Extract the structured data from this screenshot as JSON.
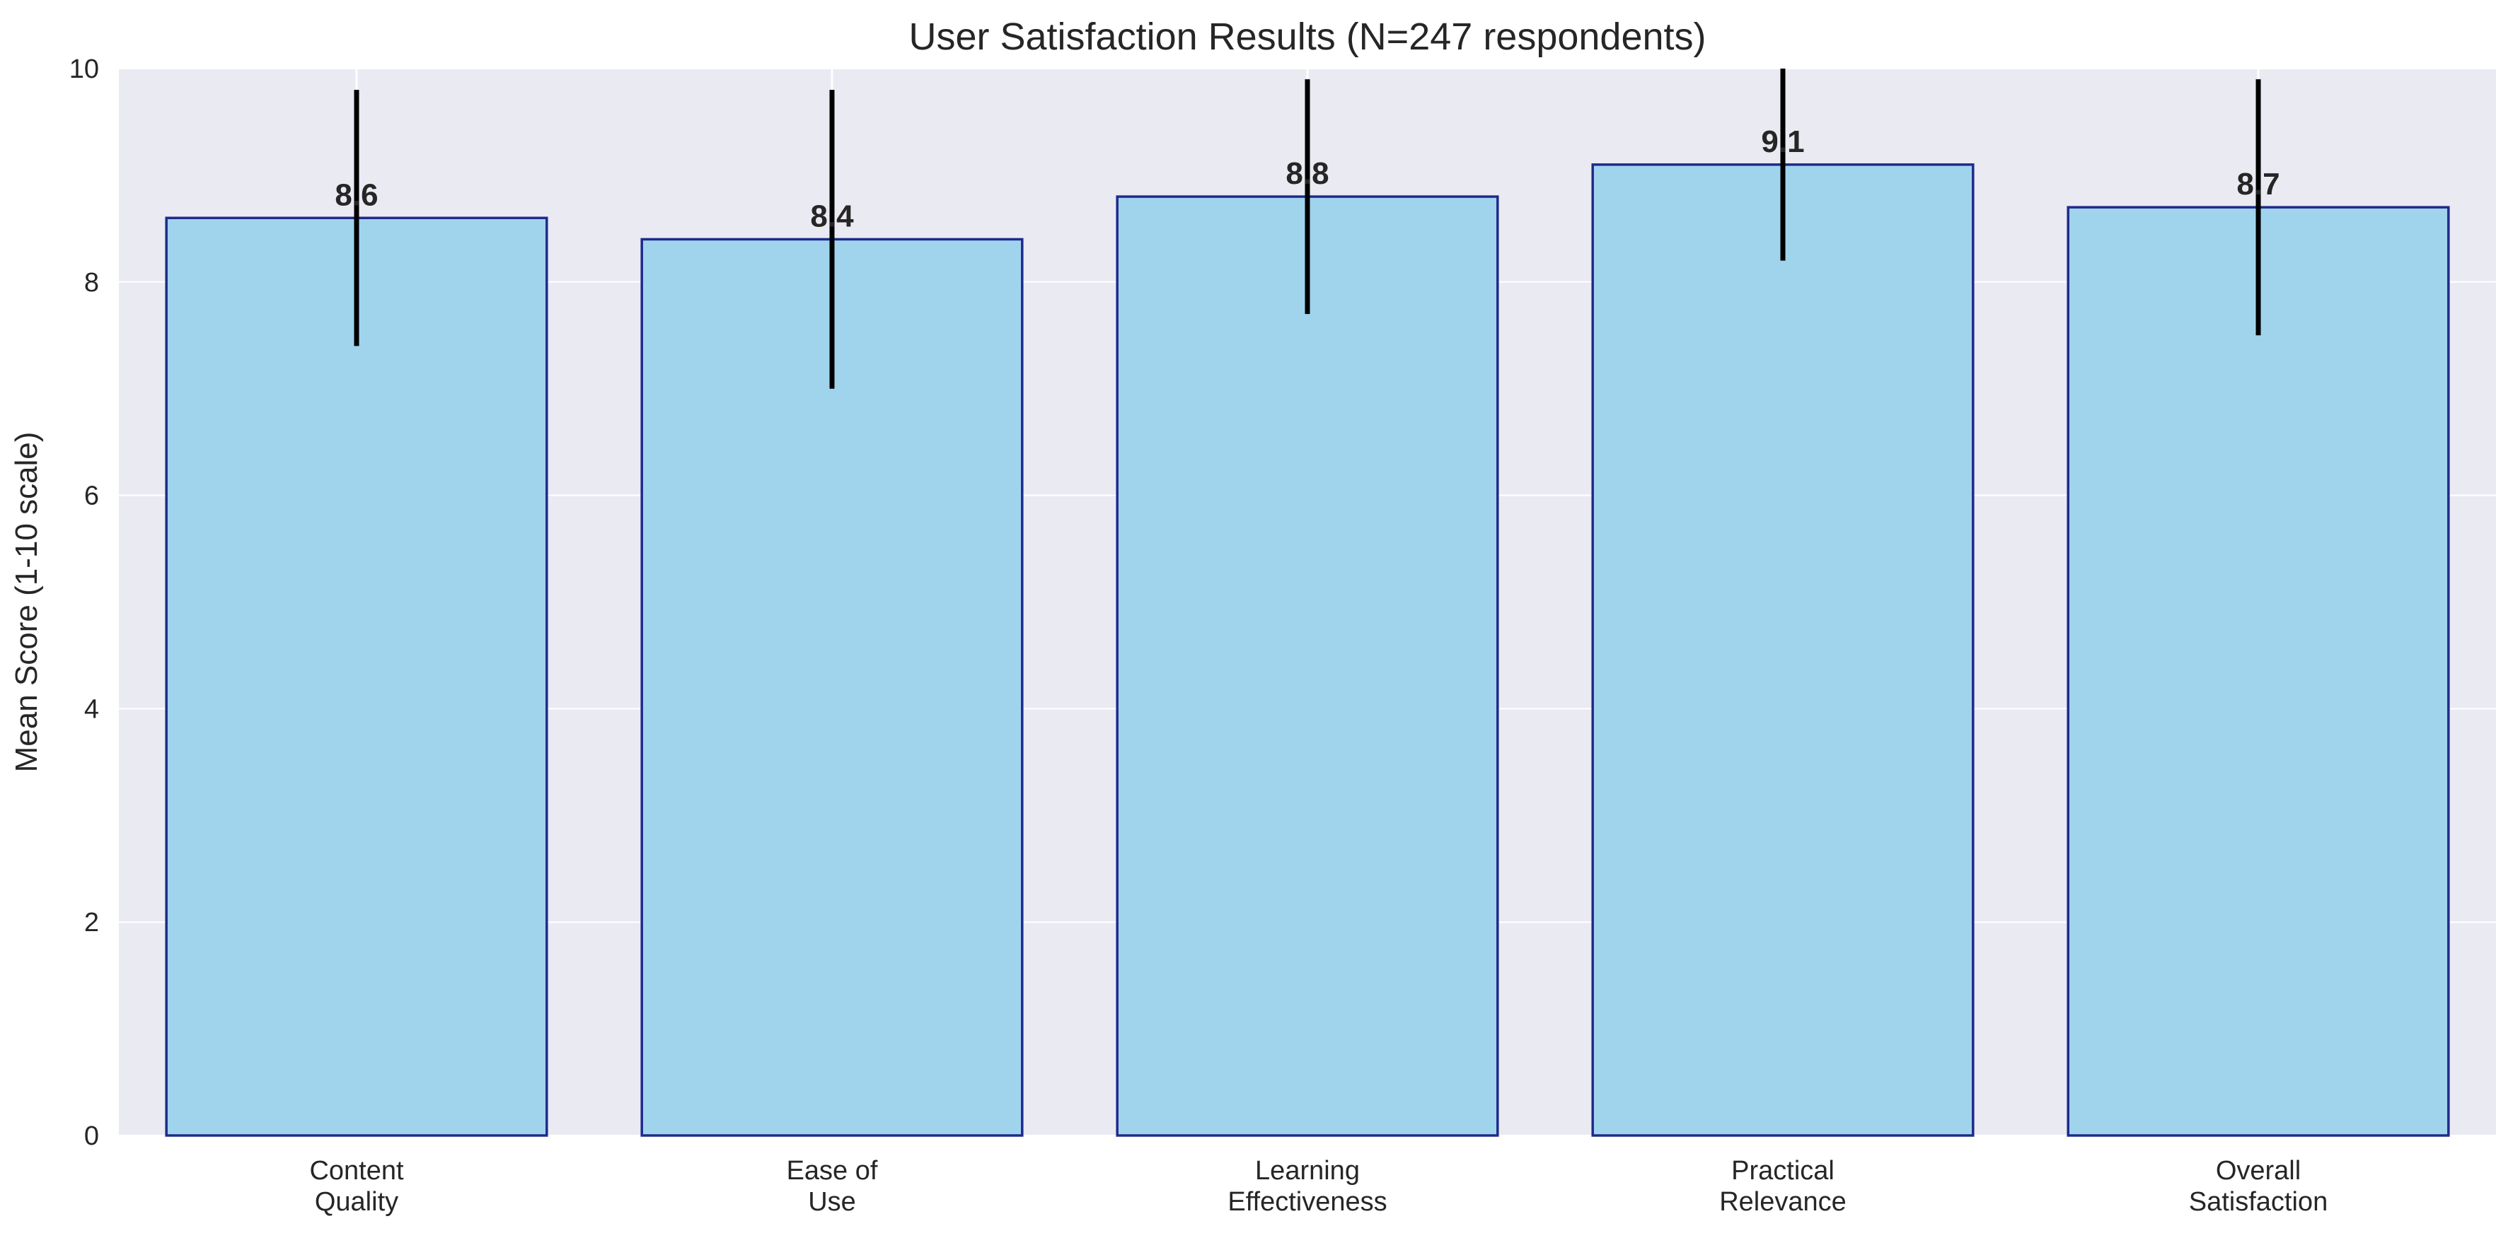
{
  "chart_data": {
    "type": "bar",
    "title": "User Satisfaction Results (N=247 respondents)",
    "xlabel": "",
    "ylabel": "Mean Score (1-10 scale)",
    "ylim": [
      0,
      10
    ],
    "yticks": [
      0,
      2,
      4,
      6,
      8,
      10
    ],
    "categories": [
      [
        "Content",
        "Quality"
      ],
      [
        "Ease of",
        "Use"
      ],
      [
        "Learning",
        "Effectiveness"
      ],
      [
        "Practical",
        "Relevance"
      ],
      [
        "Overall",
        "Satisfaction"
      ]
    ],
    "values": [
      8.6,
      8.4,
      8.8,
      9.1,
      8.7
    ],
    "value_labels": [
      "8.6",
      "8.4",
      "8.8",
      "9.1",
      "8.7"
    ],
    "errors": [
      1.2,
      1.4,
      1.1,
      0.9,
      1.2
    ],
    "grid": true,
    "legend": "none",
    "colors": {
      "bar_fill": "#9DD3EC",
      "bar_edge": "#1F2A8C",
      "error_bar": "#000000",
      "plot_background": "#EAEAF2",
      "grid": "#FFFFFF",
      "text": "#262626"
    }
  }
}
